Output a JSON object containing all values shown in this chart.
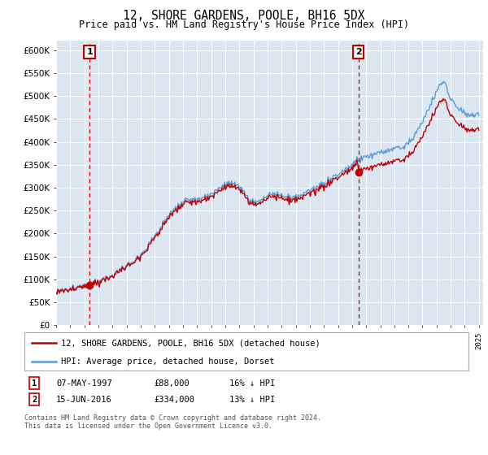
{
  "title": "12, SHORE GARDENS, POOLE, BH16 5DX",
  "subtitle": "Price paid vs. HM Land Registry's House Price Index (HPI)",
  "ylim": [
    0,
    620000
  ],
  "yticks": [
    0,
    50000,
    100000,
    150000,
    200000,
    250000,
    300000,
    350000,
    400000,
    450000,
    500000,
    550000,
    600000
  ],
  "bg_color": "#dce6f0",
  "sale1_year": 1997.37,
  "sale1_price": 88000,
  "sale2_year": 2016.46,
  "sale2_price": 334000,
  "legend_line1": "12, SHORE GARDENS, POOLE, BH16 5DX (detached house)",
  "legend_line2": "HPI: Average price, detached house, Dorset",
  "footer": "Contains HM Land Registry data © Crown copyright and database right 2024.\nThis data is licensed under the Open Government Licence v3.0.",
  "hpi_color": "#5b9bd5",
  "sale_color": "#c00000",
  "xmin": 1995,
  "xmax": 2025.3
}
